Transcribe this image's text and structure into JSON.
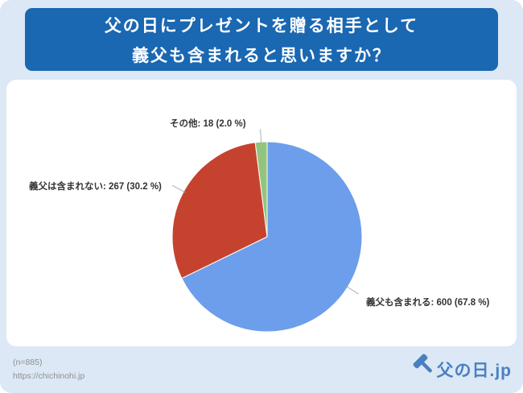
{
  "title": {
    "line1": "父の日にプレゼントを贈る相手として",
    "line2": "義父も含まれると思いますか？",
    "bg_color": "#1a67b2",
    "text_color": "#ffffff"
  },
  "chart_data": {
    "type": "pie",
    "title": "父の日にプレゼントを贈る相手として義父も含まれると思いますか？",
    "total": 885,
    "start_angle": "top",
    "direction": "clockwise",
    "legend_position": "callout-labels",
    "slices": [
      {
        "id": "included",
        "label": "義父も含まれる",
        "count": 600,
        "percent": 67.8,
        "color": "#6d9eeb",
        "display": "義父も含まれる: 600 (67.8 %)"
      },
      {
        "id": "not-included",
        "label": "義父は含まれない",
        "count": 267,
        "percent": 30.2,
        "color": "#c5432e",
        "display": "義父は含まれない: 267 (30.2 %)"
      },
      {
        "id": "other",
        "label": "その他",
        "count": 18,
        "percent": 2.0,
        "color": "#93c47d",
        "display": "その他: 18 (2.0 %)"
      }
    ],
    "callout_line_color": "#a8b0ba"
  },
  "footer": {
    "sample_size": "(n=885)",
    "source_url": "https://chichinohi.jp",
    "logo_text": "父の日.jp",
    "logo_color": "#4a80bf"
  }
}
